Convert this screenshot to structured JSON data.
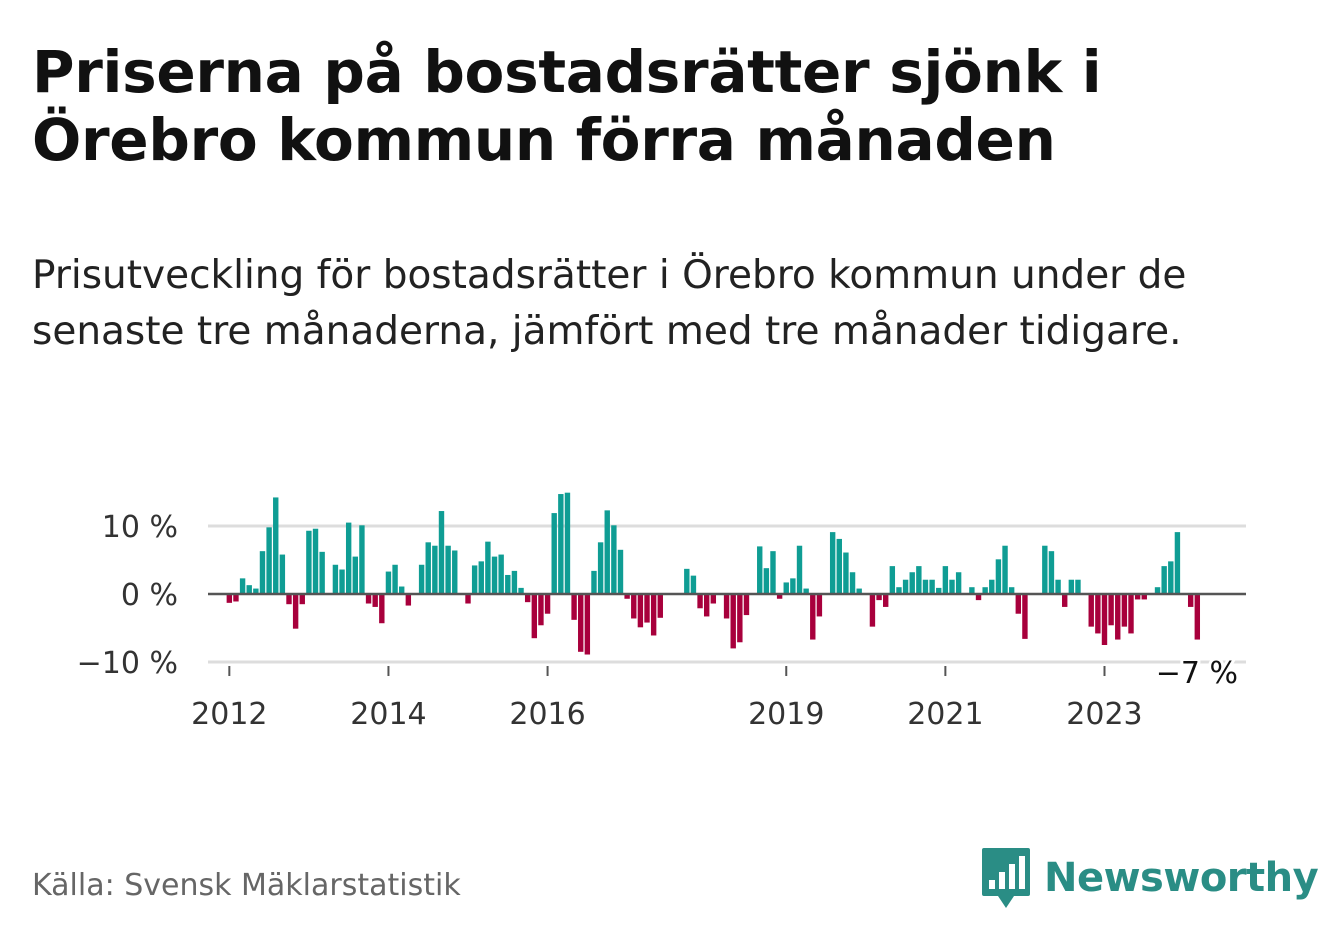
{
  "title": "Priserna på bostadsrätter sjönk i Örebro kommun förra månaden",
  "subtitle": "Prisutveckling för bostadsrätter i Örebro kommun under de senaste tre månaderna, jämfört med tre månader tidigare.",
  "source": "Källa: Svensk Mäklarstatistik",
  "brand": "Newsworthy",
  "colors": {
    "positive": "#0f9d94",
    "negative": "#a8003c",
    "brand": "#2a8d85",
    "grid": "#dddddd",
    "zero_line": "#555555"
  },
  "chart_data": {
    "type": "bar",
    "unit": "%",
    "x_start": "2011-12",
    "ylim": [
      -10,
      10
    ],
    "y_ticks": [
      {
        "value": 10,
        "label": "10 %"
      },
      {
        "value": 0,
        "label": "0 %"
      },
      {
        "value": -10,
        "label": "−10 %"
      }
    ],
    "x_ticks": [
      {
        "label": "2012",
        "index": 1
      },
      {
        "label": "2014",
        "index": 25
      },
      {
        "label": "2016",
        "index": 49
      },
      {
        "label": "2019",
        "index": 85
      },
      {
        "label": "2021",
        "index": 109
      },
      {
        "label": "2023",
        "index": 133
      }
    ],
    "last_value_label": "−7 %",
    "values": [
      0,
      -1.3,
      -1.1,
      2.3,
      1.3,
      0.8,
      6.3,
      9.8,
      14.2,
      5.8,
      -1.5,
      -5.1,
      -1.5,
      9.3,
      9.6,
      6.2,
      0,
      4.3,
      3.6,
      10.5,
      5.5,
      10.1,
      -1.4,
      -1.9,
      -4.3,
      3.3,
      4.3,
      1.1,
      -1.7,
      0,
      4.3,
      7.6,
      7.1,
      12.2,
      7.1,
      6.4,
      0,
      -1.4,
      4.2,
      4.8,
      7.7,
      5.5,
      5.8,
      2.8,
      3.4,
      0.9,
      -1.2,
      -6.5,
      -4.6,
      -2.9,
      11.9,
      14.7,
      14.9,
      -3.8,
      -8.5,
      -8.9,
      3.4,
      7.6,
      12.3,
      10.1,
      6.5,
      -0.7,
      -3.6,
      -4.9,
      -4.2,
      -6.1,
      -3.5,
      0,
      0,
      0,
      3.7,
      2.7,
      -2.1,
      -3.3,
      -1.4,
      0,
      -3.6,
      -8.0,
      -7.1,
      -3.1,
      0,
      7.0,
      3.8,
      6.3,
      -0.7,
      1.7,
      2.3,
      7.1,
      0.8,
      -6.7,
      -3.3,
      0,
      9.1,
      8.1,
      6.1,
      3.2,
      0.8,
      0,
      -4.8,
      -0.9,
      -1.9,
      4.1,
      1.0,
      2.1,
      3.2,
      4.1,
      2.1,
      2.1,
      0.9,
      4.1,
      2.1,
      3.2,
      0,
      1.0,
      -0.9,
      1.0,
      2.1,
      5.1,
      7.1,
      1.0,
      -2.9,
      -6.6,
      0,
      0,
      7.1,
      6.3,
      2.1,
      -1.9,
      2.1,
      2.1,
      0,
      -4.8,
      -5.8,
      -7.5,
      -4.6,
      -6.7,
      -4.8,
      -5.8,
      -0.8,
      -0.8,
      0,
      1.0,
      4.1,
      4.8,
      9.1,
      0,
      -1.9,
      -6.7
    ]
  }
}
